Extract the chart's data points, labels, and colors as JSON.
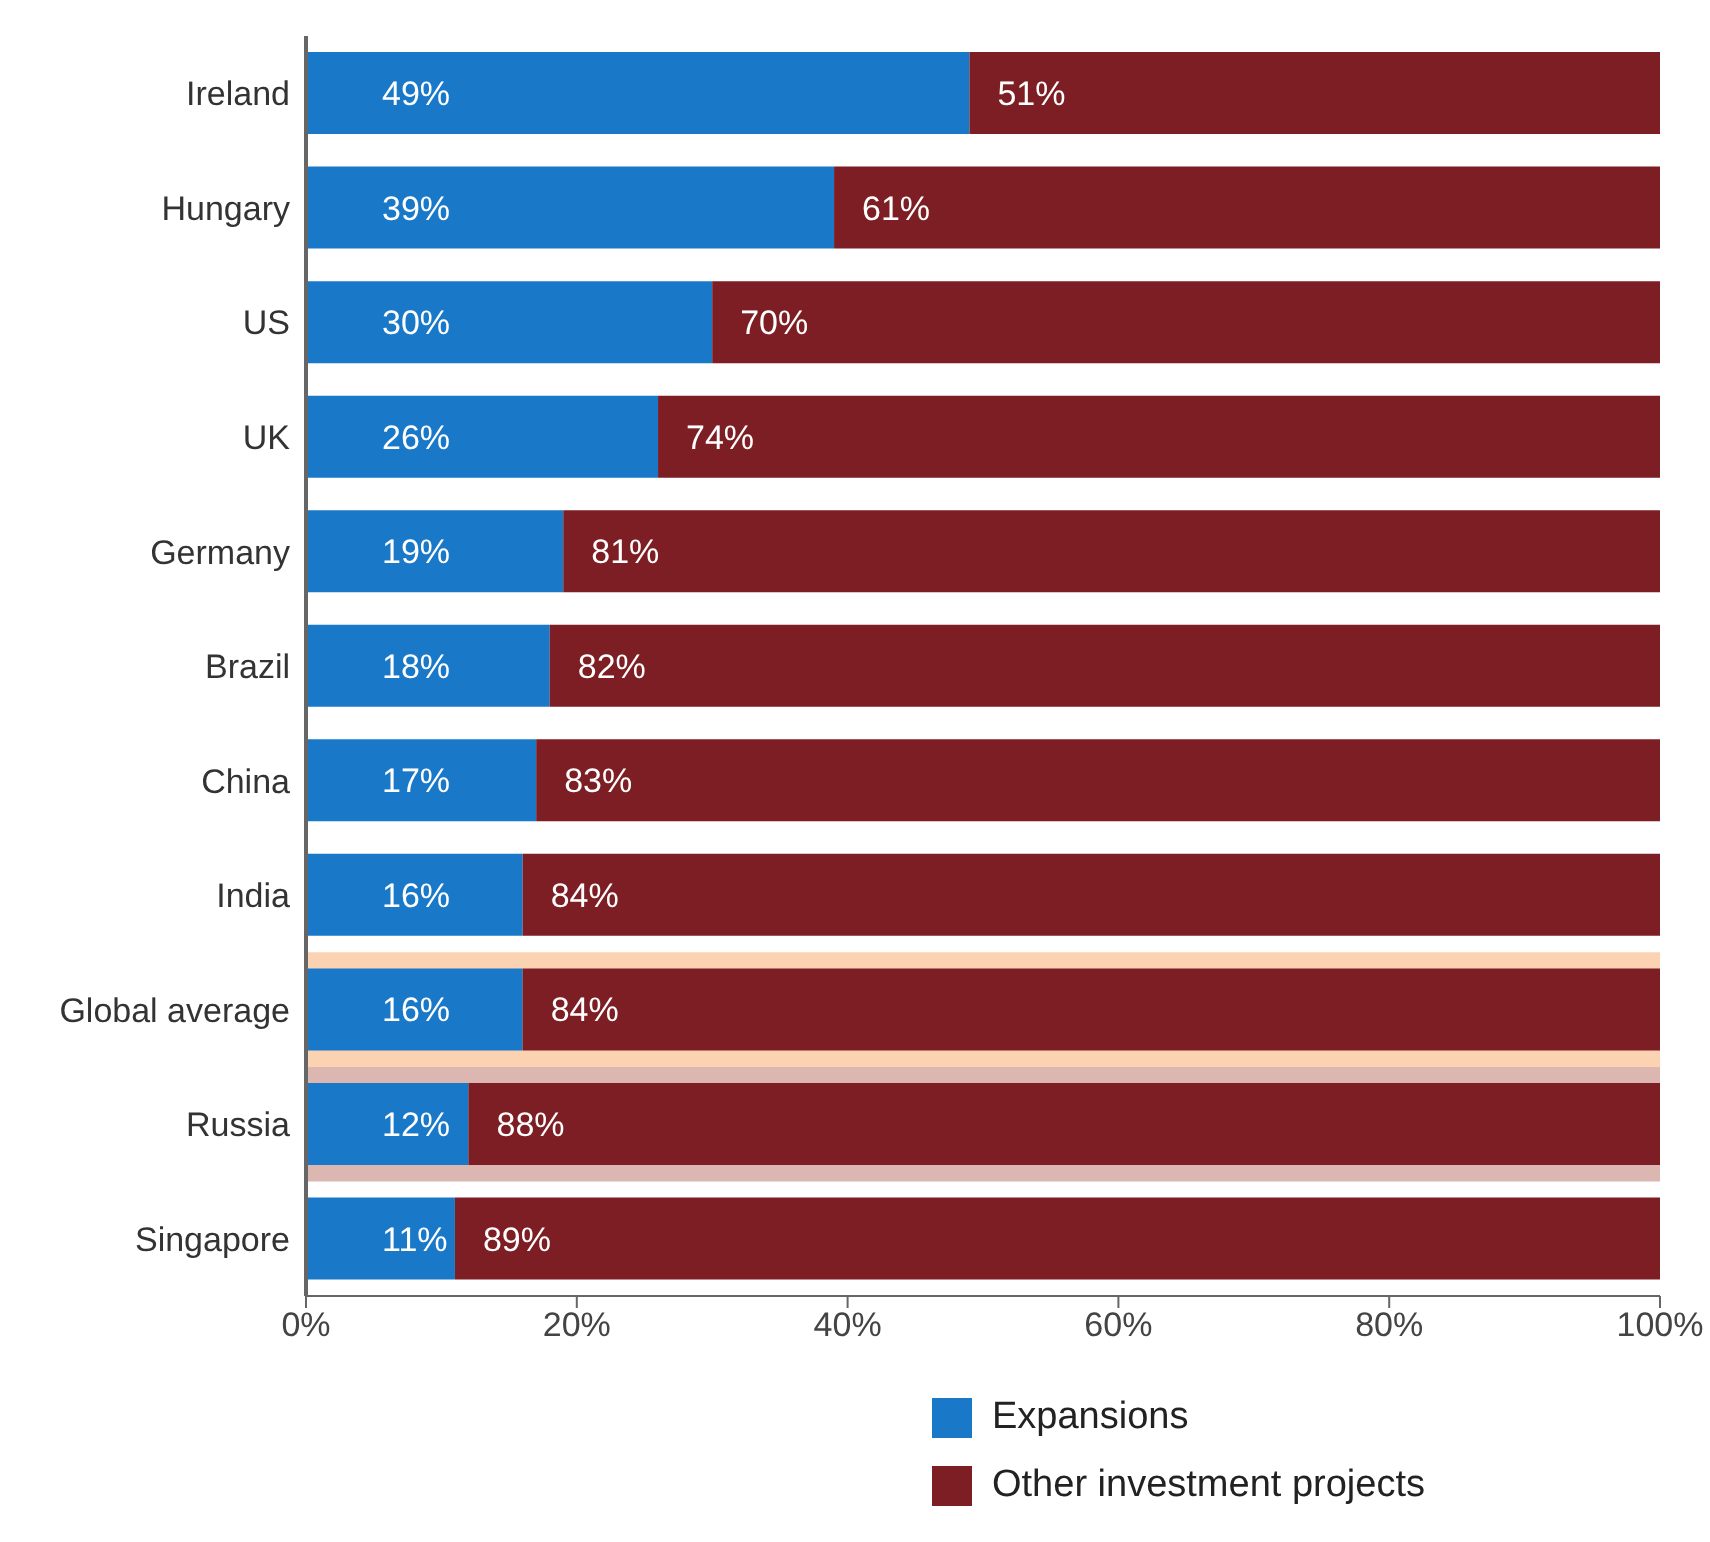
{
  "chart_data": {
    "type": "bar",
    "orientation": "horizontal",
    "stacked": true,
    "categories": [
      "Ireland",
      "Hungary",
      "US",
      "UK",
      "Germany",
      "Brazil",
      "China",
      "India",
      "Global average",
      "Russia",
      "Singapore"
    ],
    "series": [
      {
        "name": "Expansions",
        "color": "#1a78c8",
        "values": [
          49,
          39,
          30,
          26,
          19,
          18,
          17,
          16,
          16,
          12,
          11
        ],
        "value_labels": [
          "49%",
          "39%",
          "30%",
          "26%",
          "19%",
          "18%",
          "17%",
          "16%",
          "16%",
          "12%",
          "11%"
        ]
      },
      {
        "name": "Other investment projects",
        "color": "#7d1e24",
        "values": [
          51,
          61,
          70,
          74,
          81,
          82,
          83,
          84,
          84,
          88,
          89
        ],
        "value_labels": [
          "51%",
          "61%",
          "70%",
          "74%",
          "81%",
          "82%",
          "83%",
          "84%",
          "84%",
          "88%",
          "89%"
        ]
      }
    ],
    "xlim": [
      0,
      100
    ],
    "xticks": [
      {
        "value": 0,
        "label": "0%"
      },
      {
        "value": 20,
        "label": "20%"
      },
      {
        "value": 40,
        "label": "40%"
      },
      {
        "value": 60,
        "label": "60%"
      },
      {
        "value": 80,
        "label": "80%"
      },
      {
        "value": 100,
        "label": "100%"
      }
    ],
    "bands": [
      {
        "axis": "y",
        "from": "Global average",
        "to": "Global average",
        "color": "#fbd3b3"
      },
      {
        "axis": "y",
        "from": "Russia",
        "to": "Russia",
        "color": "#dcb7b1"
      }
    ],
    "legend": "bottom"
  }
}
